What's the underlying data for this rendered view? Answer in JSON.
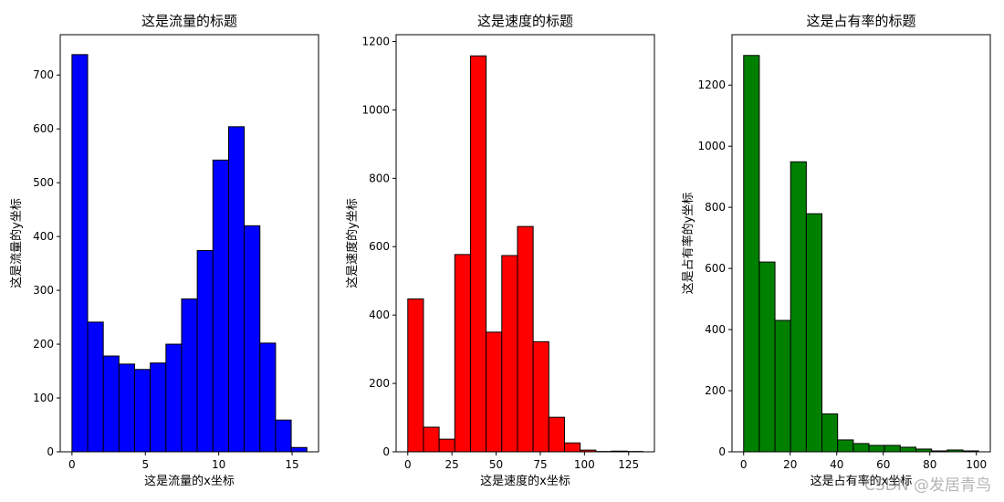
{
  "watermark": "CSDN @发居青鸟",
  "chart_data": [
    {
      "type": "bar",
      "title": "这是流量的标题",
      "xlabel": "这是流量的x坐标",
      "ylabel": "这是流量的y坐标",
      "color": "#0000ff",
      "edgecolor": "#000000",
      "xlim": [
        -0.8,
        16.8
      ],
      "ylim": [
        0,
        775
      ],
      "xticks": [
        0,
        5,
        10,
        15
      ],
      "yticks": [
        0,
        100,
        200,
        300,
        400,
        500,
        600,
        700
      ],
      "bin_start": 0,
      "bin_width": 1.067,
      "values": [
        738,
        241,
        178,
        163,
        153,
        165,
        200,
        284,
        374,
        542,
        604,
        420,
        202,
        59,
        8
      ]
    },
    {
      "type": "bar",
      "title": "这是速度的标题",
      "xlabel": "这是速度的x坐标",
      "ylabel": "这是速度的y坐标",
      "color": "#ff0000",
      "edgecolor": "#000000",
      "xlim": [
        -6.6,
        139.6
      ],
      "ylim": [
        0,
        1220
      ],
      "xticks": [
        0,
        25,
        50,
        75,
        100,
        125
      ],
      "yticks": [
        0,
        200,
        400,
        600,
        800,
        1000,
        1200
      ],
      "bin_start": 0,
      "bin_width": 8.87,
      "values": [
        447,
        72,
        37,
        577,
        1158,
        350,
        574,
        659,
        322,
        101,
        26,
        5,
        1,
        2,
        1
      ]
    },
    {
      "type": "bar",
      "title": "这是占有率的标题",
      "xlabel": "这是占有率的x坐标",
      "ylabel": "这是占有率的y坐标",
      "color": "#008000",
      "edgecolor": "#000000",
      "xlim": [
        -5.0,
        106.0
      ],
      "ylim": [
        0,
        1365
      ],
      "xticks": [
        0,
        20,
        40,
        60,
        80,
        100
      ],
      "yticks": [
        0,
        200,
        400,
        600,
        800,
        1000,
        1200
      ],
      "bin_start": 0,
      "bin_width": 6.73,
      "values": [
        1297,
        621,
        430,
        949,
        779,
        124,
        39,
        27,
        21,
        21,
        15,
        9,
        3,
        6,
        3
      ]
    }
  ]
}
